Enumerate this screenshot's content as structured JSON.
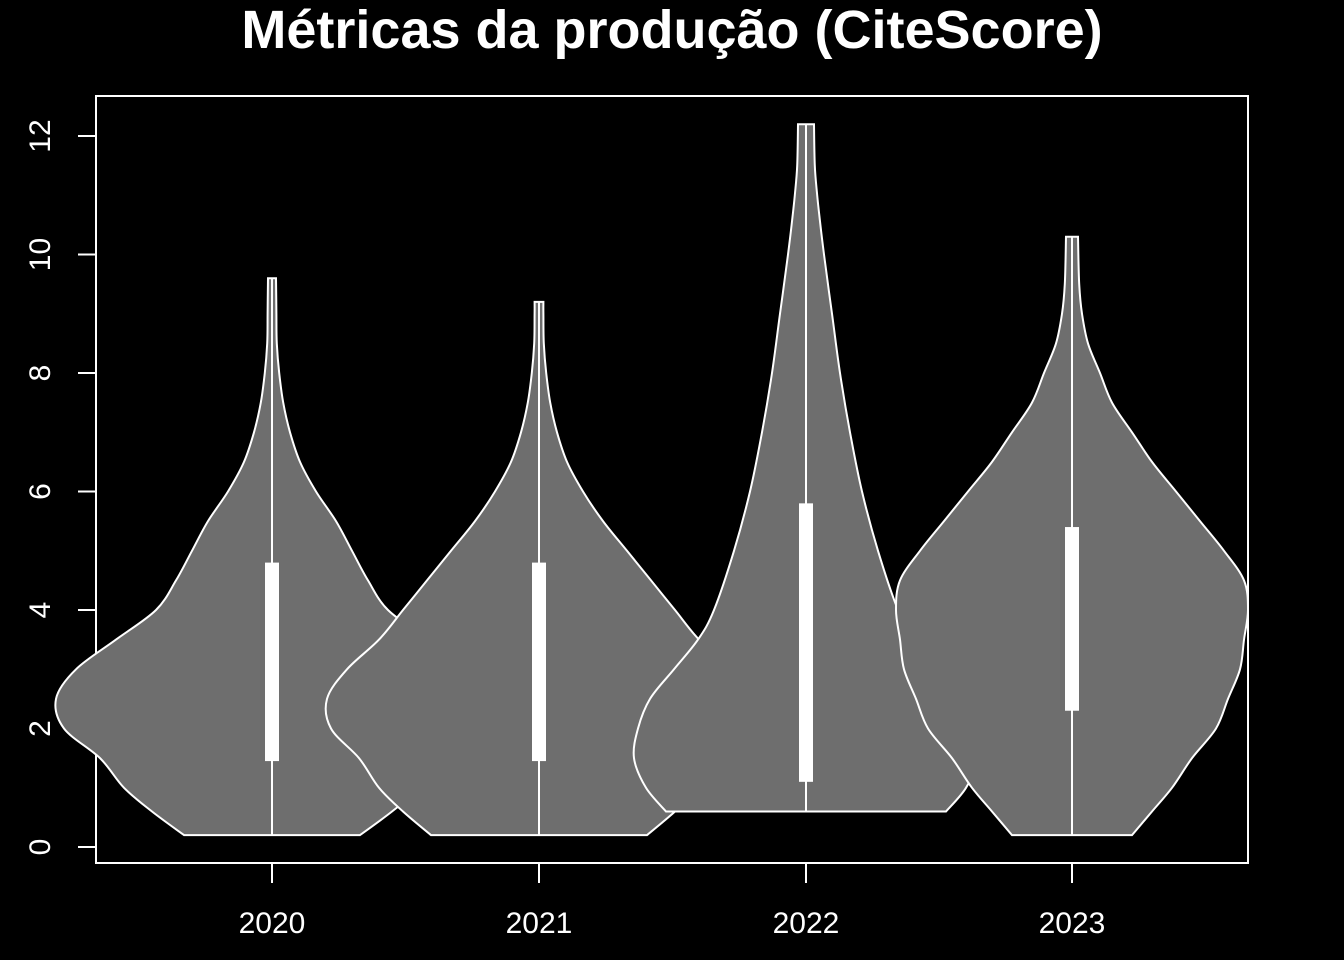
{
  "chart_data": {
    "type": "violin",
    "title": "Métricas da produção (CiteScore)",
    "xlabel": "",
    "ylabel": "",
    "categories": [
      "2020",
      "2021",
      "2022",
      "2023"
    ],
    "ylim": [
      0,
      12
    ],
    "yticks": [
      0,
      2,
      4,
      6,
      8,
      10,
      12
    ],
    "ytick_labels": [
      "0",
      "2",
      "4",
      "6",
      "8",
      "10",
      "12"
    ],
    "grid": false,
    "colors": {
      "background": "#000000",
      "violin_fill": "#6e6e6e",
      "stroke": "#ffffff"
    },
    "violins": [
      {
        "category": "2020",
        "min": 0.2,
        "q1": 1.45,
        "median": 2.8,
        "q3": 4.8,
        "max": 9.6,
        "density": [
          [
            0.2,
            0.22
          ],
          [
            0.6,
            0.3
          ],
          [
            1.0,
            0.37
          ],
          [
            1.5,
            0.43
          ],
          [
            2.0,
            0.52
          ],
          [
            2.5,
            0.54
          ],
          [
            3.0,
            0.49
          ],
          [
            3.5,
            0.39
          ],
          [
            4.0,
            0.29
          ],
          [
            4.5,
            0.24
          ],
          [
            5.0,
            0.2
          ],
          [
            5.5,
            0.16
          ],
          [
            6.0,
            0.11
          ],
          [
            6.5,
            0.07
          ],
          [
            7.0,
            0.045
          ],
          [
            7.5,
            0.028
          ],
          [
            8.0,
            0.018
          ],
          [
            8.5,
            0.012
          ],
          [
            9.0,
            0.011
          ],
          [
            9.6,
            0.01
          ]
        ]
      },
      {
        "category": "2021",
        "min": 0.2,
        "q1": 1.45,
        "median": 2.8,
        "q3": 4.8,
        "max": 9.2,
        "density": [
          [
            0.2,
            0.27
          ],
          [
            0.6,
            0.34
          ],
          [
            1.0,
            0.4
          ],
          [
            1.5,
            0.45
          ],
          [
            2.0,
            0.52
          ],
          [
            2.5,
            0.53
          ],
          [
            3.0,
            0.48
          ],
          [
            3.5,
            0.4
          ],
          [
            4.0,
            0.34
          ],
          [
            4.5,
            0.28
          ],
          [
            5.0,
            0.22
          ],
          [
            5.5,
            0.16
          ],
          [
            6.0,
            0.11
          ],
          [
            6.5,
            0.07
          ],
          [
            7.0,
            0.045
          ],
          [
            7.5,
            0.028
          ],
          [
            8.0,
            0.018
          ],
          [
            8.5,
            0.012
          ],
          [
            9.0,
            0.011
          ],
          [
            9.2,
            0.011
          ]
        ]
      },
      {
        "category": "2022",
        "min": 0.6,
        "q1": 1.1,
        "median": 2.9,
        "q3": 5.8,
        "max": 12.2,
        "density": [
          [
            0.6,
            0.35
          ],
          [
            1.0,
            0.4
          ],
          [
            1.5,
            0.43
          ],
          [
            2.0,
            0.42
          ],
          [
            2.5,
            0.39
          ],
          [
            3.0,
            0.33
          ],
          [
            3.5,
            0.27
          ],
          [
            4.0,
            0.23
          ],
          [
            5.0,
            0.18
          ],
          [
            6.0,
            0.14
          ],
          [
            7.0,
            0.11
          ],
          [
            8.0,
            0.085
          ],
          [
            9.0,
            0.065
          ],
          [
            10.0,
            0.045
          ],
          [
            10.5,
            0.036
          ],
          [
            11.0,
            0.028
          ],
          [
            11.5,
            0.022
          ],
          [
            12.2,
            0.02
          ]
        ]
      },
      {
        "category": "2023",
        "min": 0.2,
        "q1": 2.3,
        "median": 4.2,
        "q3": 5.4,
        "max": 10.3,
        "density": [
          [
            0.2,
            0.15
          ],
          [
            0.6,
            0.2
          ],
          [
            1.0,
            0.25
          ],
          [
            1.5,
            0.3
          ],
          [
            2.0,
            0.36
          ],
          [
            2.5,
            0.39
          ],
          [
            3.0,
            0.42
          ],
          [
            3.5,
            0.43
          ],
          [
            4.0,
            0.44
          ],
          [
            4.5,
            0.43
          ],
          [
            5.0,
            0.38
          ],
          [
            5.5,
            0.32
          ],
          [
            6.0,
            0.26
          ],
          [
            6.5,
            0.2
          ],
          [
            7.0,
            0.15
          ],
          [
            7.5,
            0.1
          ],
          [
            8.0,
            0.07
          ],
          [
            8.5,
            0.04
          ],
          [
            9.0,
            0.025
          ],
          [
            9.5,
            0.018
          ],
          [
            10.3,
            0.015
          ]
        ]
      }
    ]
  }
}
